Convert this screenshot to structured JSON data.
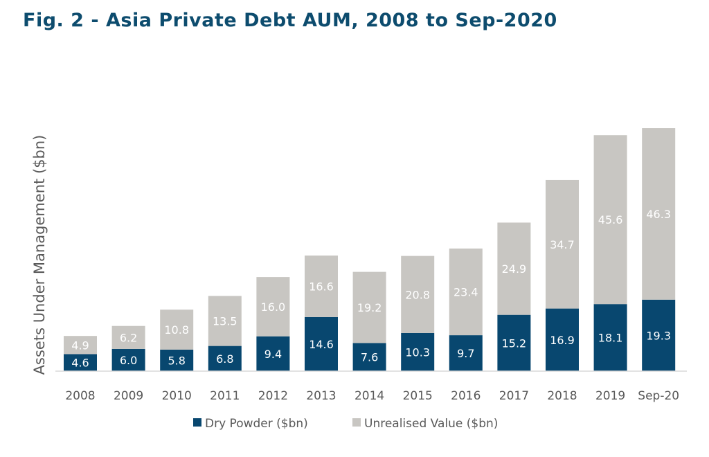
{
  "title": "Fig. 2 - Asia Private Debt AUM, 2008 to Sep-2020",
  "colors": {
    "title": "#0d4c6e",
    "dry_powder": "#08476f",
    "unrealised": "#c8c6c2",
    "axis_text": "#595959"
  },
  "chart_data": {
    "type": "bar",
    "stacked": true,
    "title": "Fig. 2 - Asia Private Debt AUM, 2008 to Sep-2020",
    "xlabel": "",
    "ylabel": "Assets Under Management ($bn)",
    "categories": [
      "2008",
      "2009",
      "2010",
      "2011",
      "2012",
      "2013",
      "2014",
      "2015",
      "2016",
      "2017",
      "2018",
      "2019",
      "Sep-20"
    ],
    "series": [
      {
        "name": "Dry Powder ($bn)",
        "values": [
          4.6,
          6.0,
          5.8,
          6.8,
          9.4,
          14.6,
          7.6,
          10.3,
          9.7,
          15.2,
          16.9,
          18.1,
          19.3
        ]
      },
      {
        "name": "Unrealised Value ($bn)",
        "values": [
          4.9,
          6.2,
          10.8,
          13.5,
          16.0,
          16.6,
          19.2,
          20.8,
          23.4,
          24.9,
          34.7,
          45.6,
          46.3
        ]
      }
    ],
    "ylim": [
      0,
      70
    ],
    "grid": false,
    "legend_position": "bottom"
  }
}
